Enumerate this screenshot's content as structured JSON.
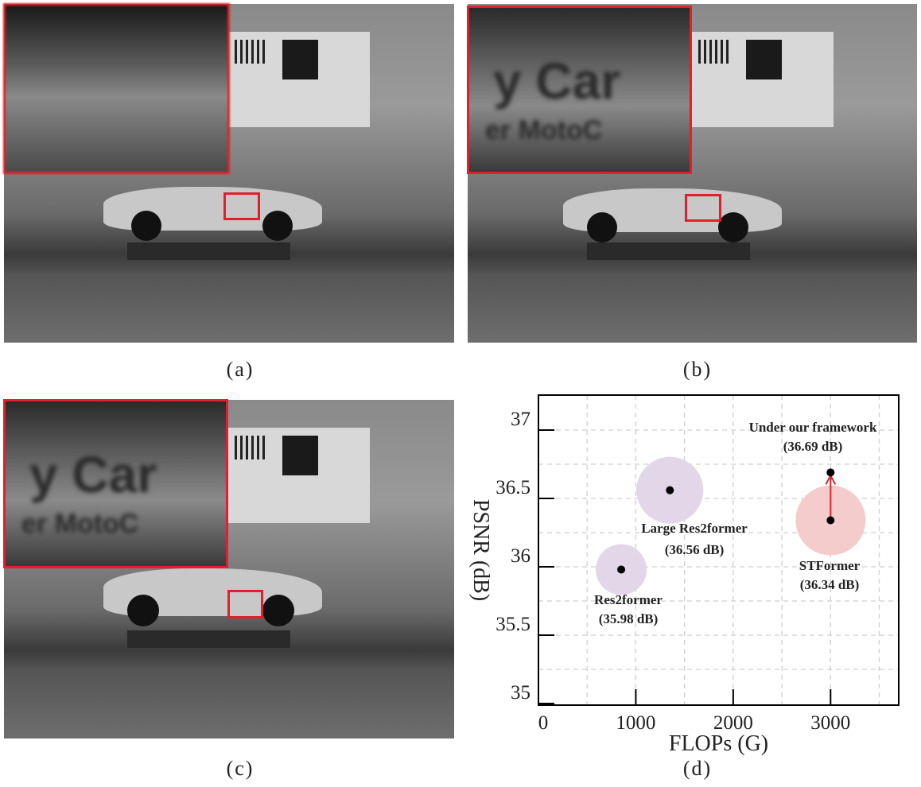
{
  "panels": [
    {
      "caption": "(a)",
      "inset_text": [
        "",
        ""
      ]
    },
    {
      "caption": "(b)",
      "inset_text": [
        "y Car",
        "er MotoC"
      ]
    },
    {
      "caption": "(c)",
      "inset_text": [
        "y Car",
        "er MotoC"
      ]
    }
  ],
  "chart_caption": "(d)",
  "chart_data": {
    "type": "scatter",
    "xlabel": "FLOPs (G)",
    "ylabel": "PSNR (dB)",
    "xlim": [
      0,
      3700
    ],
    "ylim": [
      35,
      37.25
    ],
    "xticks": [
      "0",
      "1000",
      "2000",
      "3000"
    ],
    "yticks": [
      "35",
      "35.5",
      "36",
      "36.5",
      "37"
    ],
    "grid": true,
    "points": [
      {
        "label": "Res2former",
        "value_label": "(35.98 dB)",
        "x": 850,
        "y": 35.98,
        "bubble_color": "#e2d6e8"
      },
      {
        "label": "Large Res2former",
        "value_label": "(36.56 dB)",
        "x": 1350,
        "y": 36.56,
        "bubble_color": "#e2d6e8"
      },
      {
        "label": "STFormer",
        "value_label": "(36.34 dB)",
        "x": 3000,
        "y": 36.34,
        "bubble_color": "#f5cccc"
      },
      {
        "label": "Under our framework",
        "value_label": "(36.69 dB)",
        "x": 3000,
        "y": 36.69,
        "bubble_color": null
      }
    ],
    "arrow": {
      "from": "STFormer",
      "to": "Under our framework",
      "color": "#e0202a"
    }
  }
}
